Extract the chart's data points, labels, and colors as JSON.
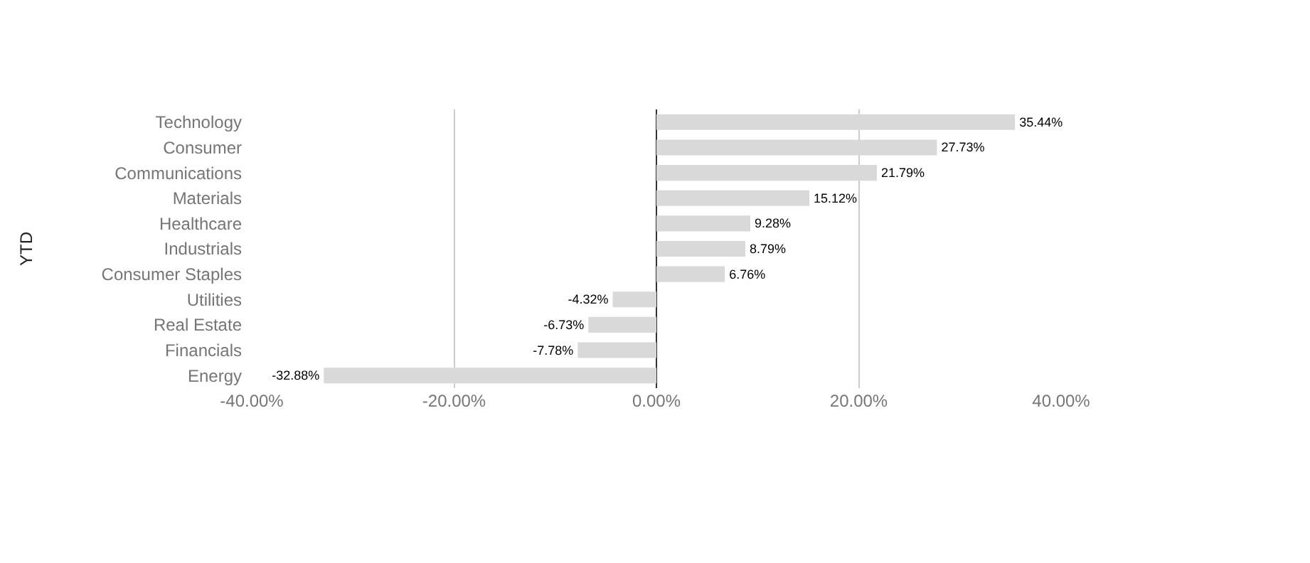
{
  "chart_data": {
    "type": "bar",
    "orientation": "horizontal",
    "ylabel": "YTD",
    "categories": [
      "Technology",
      "Consumer",
      "Communications",
      "Materials",
      "Healthcare",
      "Industrials",
      "Consumer Staples",
      "Utilities",
      "Real Estate",
      "Financials",
      "Energy"
    ],
    "values": [
      35.44,
      27.73,
      21.79,
      15.12,
      9.28,
      8.79,
      6.76,
      -4.32,
      -6.73,
      -7.78,
      -32.88
    ],
    "value_labels": [
      "35.44%",
      "27.73%",
      "21.79%",
      "15.12%",
      "9.28%",
      "8.79%",
      "6.76%",
      "-4.32%",
      "-6.73%",
      "-7.78%",
      "-32.88%"
    ],
    "color": "#d9d9d9",
    "xlim": [
      -40,
      40
    ],
    "xticks": [
      {
        "value": -40,
        "label": "-40.00%"
      },
      {
        "value": -20,
        "label": "-20.00%"
      },
      {
        "value": 0,
        "label": "0.00%"
      },
      {
        "value": 20,
        "label": "20.00%"
      },
      {
        "value": 40,
        "label": "40.00%"
      }
    ],
    "grid": "x"
  }
}
